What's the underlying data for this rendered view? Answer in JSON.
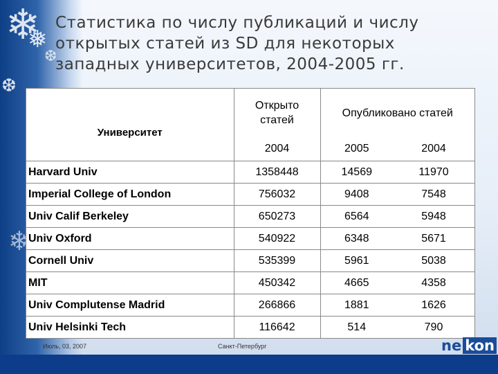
{
  "slide": {
    "title": "Статистика по числу публикаций и числу открытых статей из SD для  некоторых западных университетов, 2004-2005 гг."
  },
  "table": {
    "header_university": "Университет",
    "header_opened": "Открыто статей",
    "header_published": "Опубликовано статей",
    "years": [
      "2004",
      "2005",
      "2004"
    ],
    "rows": [
      {
        "name": "Harvard Univ",
        "values": [
          "1358448",
          "14569",
          "11970"
        ]
      },
      {
        "name": "Imperial College of London",
        "values": [
          "756032",
          "9408",
          "7548"
        ]
      },
      {
        "name": "Univ Calif Berkeley",
        "values": [
          "650273",
          "6564",
          "5948"
        ]
      },
      {
        "name": "Univ Oxford",
        "values": [
          "540922",
          "6348",
          "5671"
        ]
      },
      {
        "name": "Cornell Univ",
        "values": [
          "535399",
          "5961",
          "5038"
        ]
      },
      {
        "name": "MIT",
        "values": [
          "450342",
          "4665",
          "4358"
        ]
      },
      {
        "name": "Univ Complutense Madrid",
        "values": [
          "266866",
          "1881",
          "1626"
        ]
      },
      {
        "name": "Univ Helsinki Tech",
        "values": [
          "116642",
          "514",
          "790"
        ]
      }
    ]
  },
  "footer": {
    "date": "Июль, 03, 2007",
    "city": "Санкт-Петербург",
    "logo_part1": "ne",
    "logo_part2": "kon"
  },
  "colors": {
    "brand_blue": "#1b4c9a",
    "bottom_bar": "#0d3d8a"
  }
}
